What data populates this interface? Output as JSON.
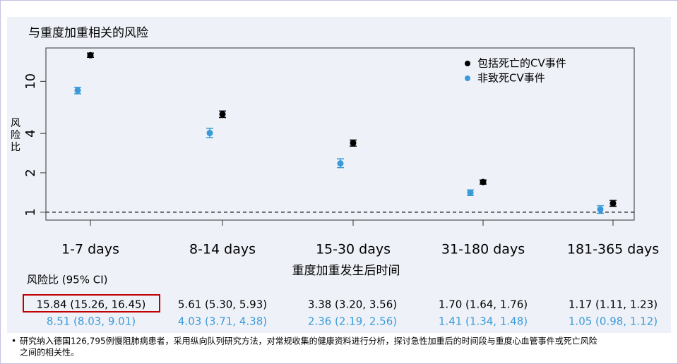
{
  "title_text": "与重度加重相关的风险",
  "chart_data": {
    "type": "errorbar",
    "y_label": "风险比",
    "x_label": "重度加重发生后时间",
    "categories": [
      "1-7 days",
      "8-14 days",
      "15-30 days",
      "31-180 days",
      "181-365 days"
    ],
    "log_scale": true,
    "ylim": [
      0.87,
      18
    ],
    "yticks": [
      1,
      2,
      4,
      10
    ],
    "reference_line": 1,
    "legend": "upper right",
    "table_title": "风险比 (95% CI)",
    "series": [
      {
        "name": "包括死亡的CV事件",
        "color": "#000000",
        "values": [
          15.84,
          5.61,
          3.38,
          1.7,
          1.17
        ],
        "lower": [
          15.26,
          5.3,
          3.2,
          1.64,
          1.11
        ],
        "upper": [
          16.45,
          5.93,
          3.56,
          1.76,
          1.23
        ],
        "value_labels": [
          "15.84 (15.26, 16.45)",
          "5.61 (5.30, 5.93)",
          "3.38 (3.20, 3.56)",
          "1.70 (1.64, 1.76)",
          "1.17 (1.11, 1.23)"
        ]
      },
      {
        "name": "非致死CV事件",
        "color": "#3a9ad9",
        "values": [
          8.51,
          4.03,
          2.36,
          1.41,
          1.05
        ],
        "lower": [
          8.03,
          3.71,
          2.19,
          1.34,
          0.98
        ],
        "upper": [
          9.01,
          4.38,
          2.56,
          1.48,
          1.12
        ],
        "value_labels": [
          "8.51 (8.03, 9.01)",
          "4.03 (3.71, 4.38)",
          "2.36 (2.19, 2.56)",
          "1.41 (1.34, 1.48)",
          "1.05 (0.98, 1.12)"
        ]
      }
    ]
  },
  "footnote": [
    "研究纳入德国126,795例慢阻肺病患者，采用纵向队列研究方法，对常规收集的健康资料进行分析，探讨急性加重后的时间段与重度心血管事件或死亡风险",
    "之间的相关性。"
  ]
}
